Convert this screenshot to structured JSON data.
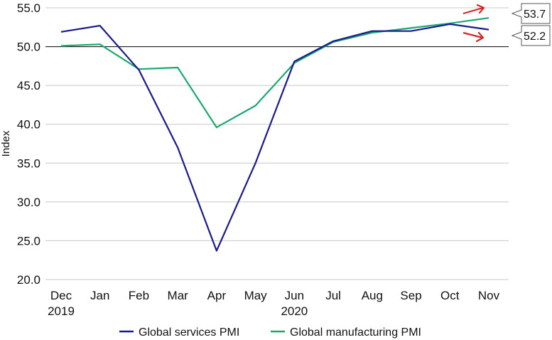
{
  "chart_data": {
    "type": "line",
    "categories": [
      "Dec\n2019",
      "Jan",
      "Feb",
      "Mar",
      "Apr",
      "May",
      "Jun\n2020",
      "Jul",
      "Aug",
      "Sep",
      "Oct",
      "Nov"
    ],
    "series": [
      {
        "name": "Global services PMI",
        "color": "#1a1a8c",
        "values": [
          51.9,
          52.7,
          47.0,
          37.0,
          23.7,
          35.0,
          48.1,
          50.7,
          52.0,
          52.0,
          52.9,
          52.2
        ]
      },
      {
        "name": "Global manufacturing PMI",
        "color": "#1aa86e",
        "values": [
          50.1,
          50.3,
          47.1,
          47.3,
          39.6,
          42.4,
          47.9,
          50.6,
          51.8,
          52.4,
          53.0,
          53.7
        ]
      }
    ],
    "ylabel": "Index",
    "ylim": [
      20.0,
      55.0
    ],
    "yticks": [
      "20.0",
      "25.0",
      "30.0",
      "35.0",
      "40.0",
      "45.0",
      "50.0",
      "55.0"
    ],
    "reference_line": 50.0,
    "grid": true,
    "legend_position": "bottom",
    "callouts": [
      {
        "label": "53.7",
        "series": "Global manufacturing PMI",
        "arrow": "up",
        "arrow_color": "#d62728"
      },
      {
        "label": "52.2",
        "series": "Global services PMI",
        "arrow": "down",
        "arrow_color": "#d62728"
      }
    ]
  }
}
